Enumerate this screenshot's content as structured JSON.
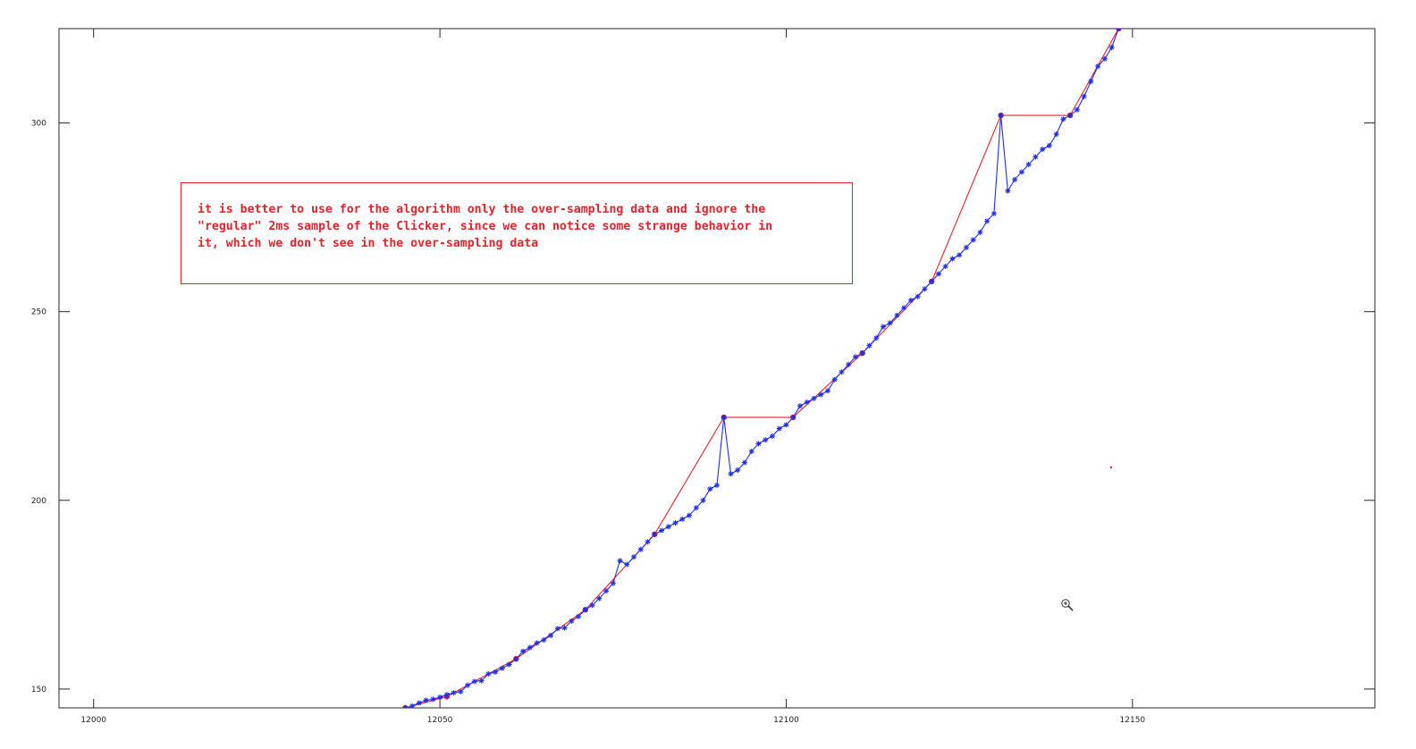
{
  "chart_data": {
    "type": "line",
    "xlim": [
      11995,
      12185
    ],
    "ylim": [
      145,
      325
    ],
    "x_ticks": [
      12000,
      12050,
      12100,
      12150
    ],
    "x_tick_labels": [
      "12000",
      "12050",
      "12100",
      "12150"
    ],
    "y_ticks": [
      150,
      200,
      250,
      300
    ],
    "y_tick_labels": [
      "150",
      "200",
      "250",
      "300"
    ],
    "grid": false,
    "series": [
      {
        "color": "#e8202a",
        "marker": "circle-at-samples",
        "x": [
          12045,
          12051,
          12061,
          12071,
          12081,
          12091,
          12101,
          12111,
          12121,
          12131,
          12141,
          12148
        ],
        "y": [
          145,
          148,
          158,
          171,
          191,
          222,
          222,
          239,
          258,
          302,
          302,
          325
        ]
      },
      {
        "color": "#1f2fe6",
        "marker": "star",
        "x": [
          12045,
          12046,
          12047,
          12048,
          12049,
          12050,
          12051,
          12052,
          12053,
          12054,
          12055,
          12056,
          12057,
          12058,
          12059,
          12060,
          12061,
          12062,
          12063,
          12064,
          12065,
          12066,
          12067,
          12068,
          12069,
          12070,
          12071,
          12072,
          12073,
          12074,
          12075,
          12076,
          12077,
          12078,
          12079,
          12080,
          12081,
          12082,
          12083,
          12084,
          12085,
          12086,
          12087,
          12088,
          12089,
          12090,
          12091,
          12092,
          12093,
          12094,
          12095,
          12096,
          12097,
          12098,
          12099,
          12100,
          12101,
          12102,
          12103,
          12104,
          12105,
          12106,
          12107,
          12108,
          12109,
          12110,
          12111,
          12112,
          12113,
          12114,
          12115,
          12116,
          12117,
          12118,
          12119,
          12120,
          12121,
          12122,
          12123,
          12124,
          12125,
          12126,
          12127,
          12128,
          12129,
          12130,
          12131,
          12132,
          12133,
          12134,
          12135,
          12136,
          12137,
          12138,
          12139,
          12140,
          12141,
          12142,
          12143,
          12144,
          12145,
          12146,
          12147,
          12148
        ],
        "y": [
          145,
          145.5,
          146.3,
          147,
          147.3,
          147.8,
          148.5,
          149,
          149.3,
          151,
          152,
          152.2,
          154,
          154.5,
          155.5,
          156.5,
          158,
          160,
          161,
          162.2,
          163,
          164.2,
          166,
          166.2,
          168,
          169.2,
          171,
          172.2,
          174,
          176,
          178,
          184,
          183,
          185,
          187,
          189,
          191,
          192,
          193,
          194,
          195,
          196,
          198,
          200,
          203,
          204,
          222,
          207,
          208,
          210,
          213,
          215,
          216,
          217,
          219,
          220,
          222,
          225,
          226,
          227,
          228,
          229,
          232,
          234,
          236,
          238,
          239,
          241,
          243,
          246,
          247,
          249,
          251,
          253,
          254,
          256,
          258,
          260,
          262,
          264,
          265,
          267,
          269,
          271,
          274,
          276,
          302,
          282,
          285,
          287,
          289,
          291,
          293,
          294,
          297,
          301,
          302,
          303.5,
          307,
          311,
          315,
          317,
          320,
          325
        ]
      }
    ],
    "annotation": "it is better to use for the algorithm only the over-sampling data and ignore the\n\"regular\" 2ms sample of the Clicker, since we can notice some strange behavior in\nit, which we don't see in the over-sampling data"
  }
}
